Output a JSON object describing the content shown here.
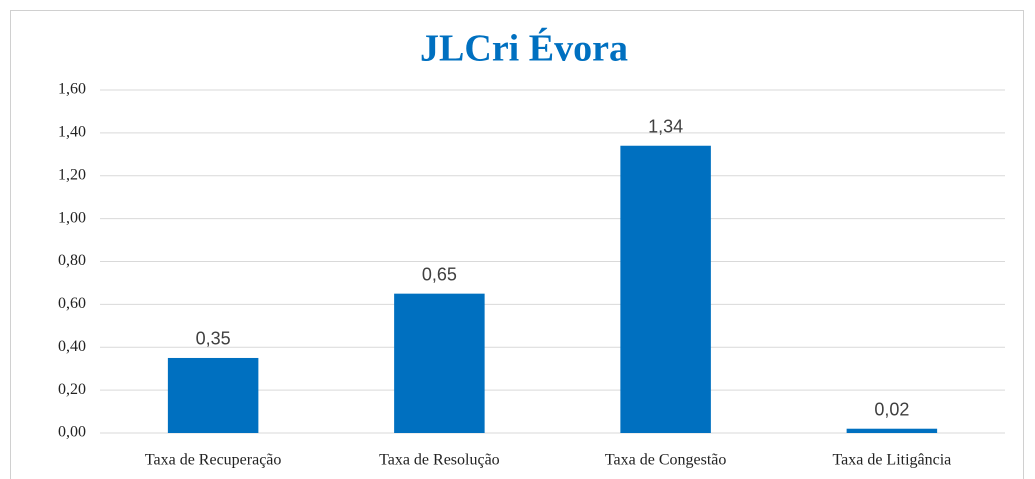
{
  "chart_data": {
    "type": "bar",
    "title": "JLCri Évora",
    "categories": [
      "Taxa de Recuperação",
      "Taxa de Resolução",
      "Taxa de Congestão",
      "Taxa de Litigância"
    ],
    "values": [
      0.35,
      0.65,
      1.34,
      0.02
    ],
    "value_labels": [
      "0,35",
      "0,65",
      "1,34",
      "0,02"
    ],
    "color": "#0070c0",
    "ylim": [
      0,
      1.6
    ],
    "yticks": [
      {
        "value": 0,
        "label": "0,00"
      },
      {
        "value": 0.2,
        "label": "0,20"
      },
      {
        "value": 0.4,
        "label": "0,40"
      },
      {
        "value": 0.6,
        "label": "0,60"
      },
      {
        "value": 0.8,
        "label": "0,80"
      },
      {
        "value": 1.0,
        "label": "1,00"
      },
      {
        "value": 1.2,
        "label": "1,20"
      },
      {
        "value": 1.4,
        "label": "1,40"
      },
      {
        "value": 1.6,
        "label": "1,60"
      }
    ],
    "grid": true
  }
}
